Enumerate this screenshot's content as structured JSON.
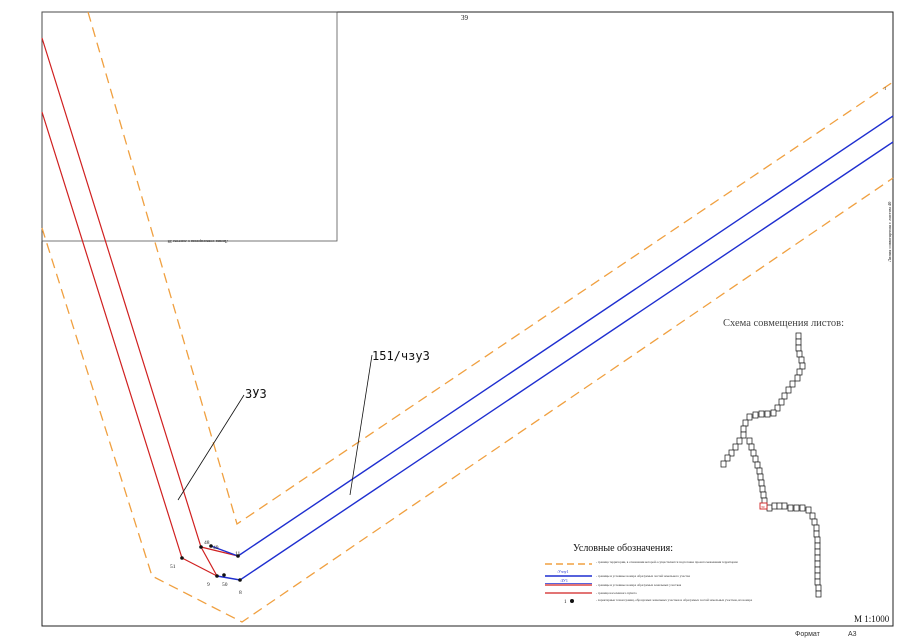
{
  "sheet": {
    "number": "39",
    "scale": "M 1:1000",
    "format_label": "Формат",
    "format_value": "А3",
    "match_line_left": "Линия совмещения с листом 38",
    "match_line_right": "Линия совмещения с листом 40"
  },
  "callouts": {
    "zone_a": "ЗУ3",
    "zone_b": "151/чзу3"
  },
  "points": [
    {
      "id": "48"
    },
    {
      "id": "49"
    },
    {
      "id": "11"
    },
    {
      "id": "51"
    },
    {
      "id": "9"
    },
    {
      "id": "50"
    },
    {
      "id": "8"
    }
  ],
  "edge_marker": "1",
  "colors": {
    "territory_boundary": "#f0a040",
    "part_boundary": "#1f2fd0",
    "parcel_boundary": "#d02020",
    "frame": "#222222"
  },
  "scheme": {
    "title": "Схема совмещения листов:",
    "highlight_sheet": "39"
  },
  "legend": {
    "title": "Условные обозначения:",
    "items": [
      {
        "symbol": "orange-dashed-line",
        "text": "- граница территории, в отношении которой осуществляется подготовка проекта межевания территории"
      },
      {
        "symbol": "blue-line",
        "label": ":Учзу1",
        "text": "- границы и условные номера образуемых частей земельного участка"
      },
      {
        "symbol": "blue-red-line",
        "label": ":ЗУ1",
        "text": "- границы и условные номера образуемых земельных участков"
      },
      {
        "symbol": "red-line",
        "text": "- граница населенного пункта"
      },
      {
        "symbol": "point-marker",
        "label": "1",
        "text": "- характерные точки границ, образуемых земельных участков и образуемых частей земельных участков, их номера"
      }
    ]
  }
}
